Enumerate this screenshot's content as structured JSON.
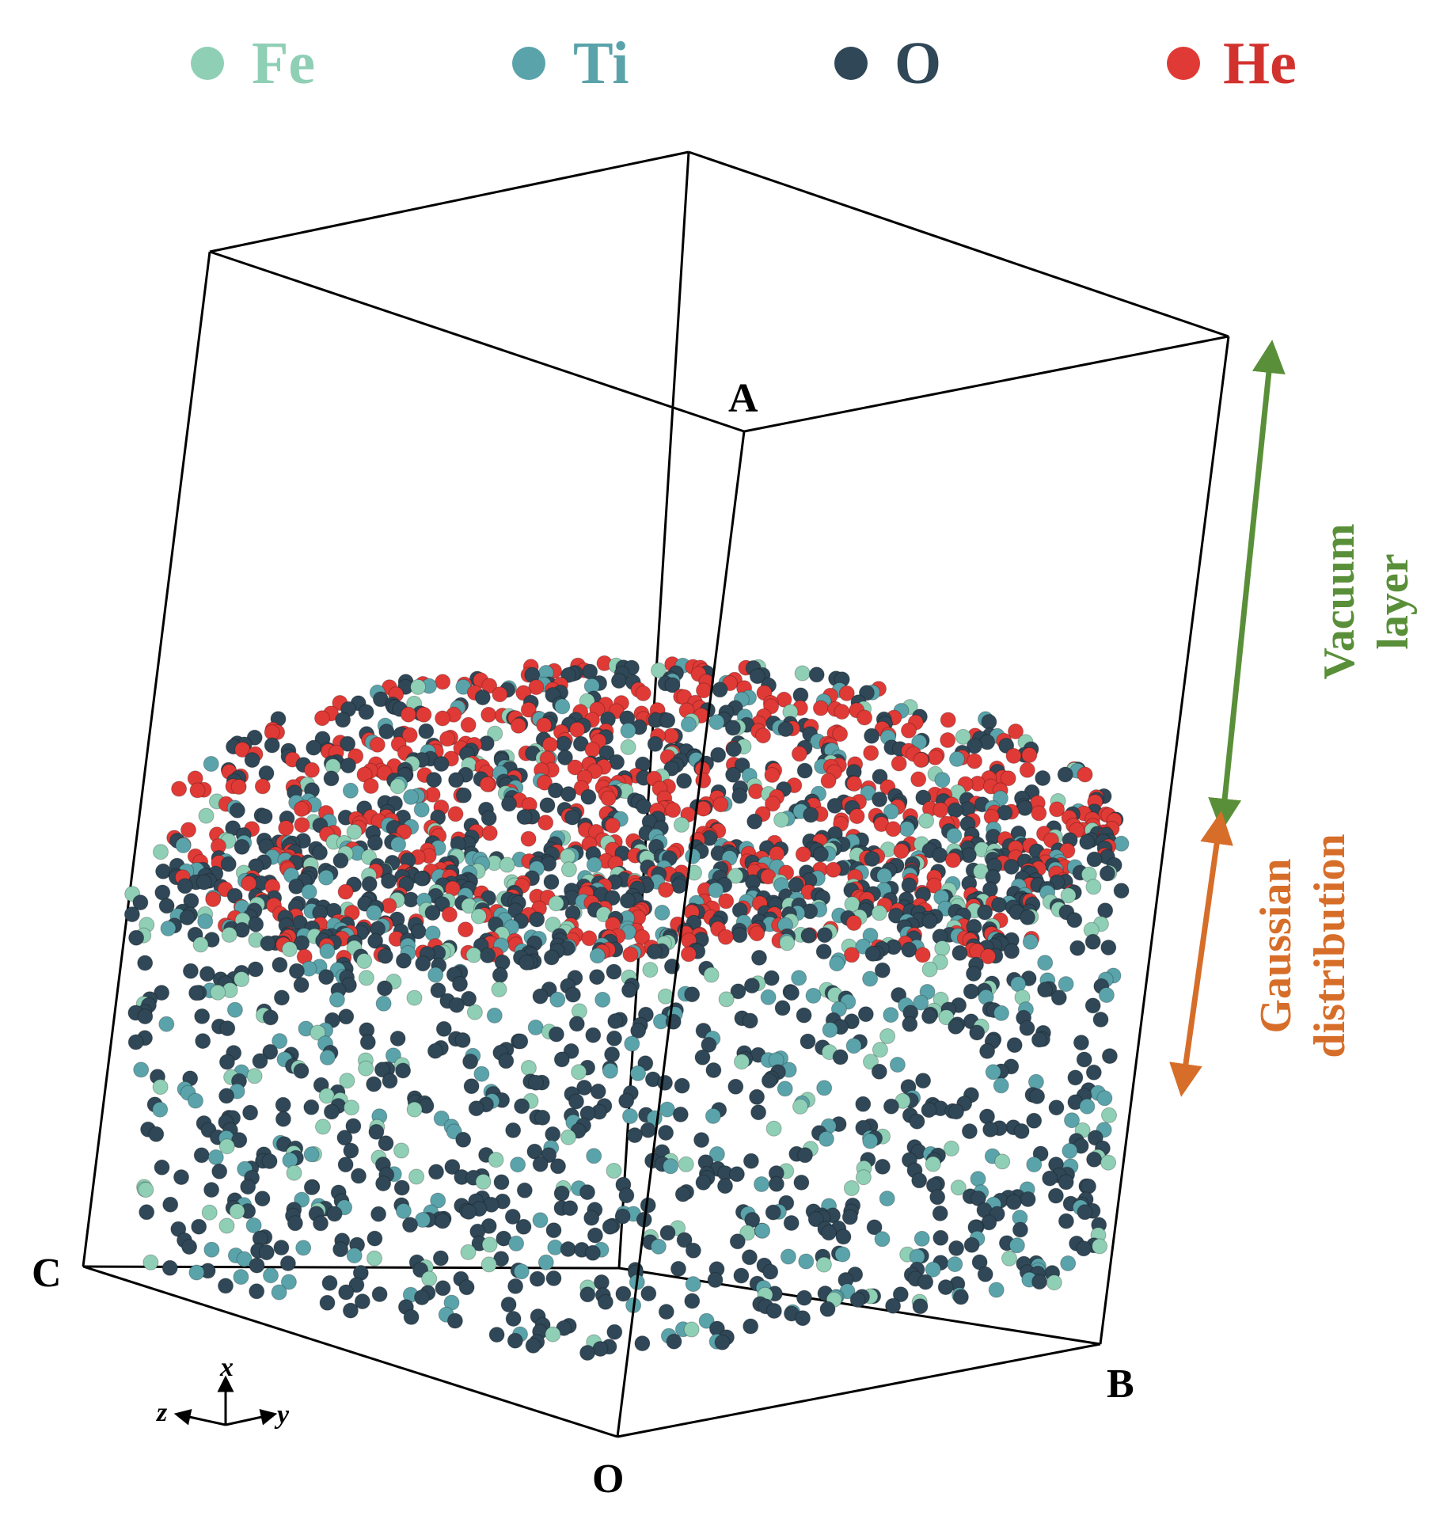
{
  "legend": [
    {
      "label": "Fe",
      "color": "#8fcfb5"
    },
    {
      "label": "Ti",
      "color": "#5aa3aa"
    },
    {
      "label": "O",
      "color": "#2f4756"
    },
    {
      "label": "He",
      "color": "#e03a36"
    }
  ],
  "vertices": {
    "A": "A",
    "B": "B",
    "C": "C",
    "O": "O"
  },
  "annotations": {
    "vacuum_line1": "Vacuum",
    "vacuum_line2": "layer",
    "vacuum_color": "#5a8f3a",
    "gauss_line1": "Gaussian",
    "gauss_line2": "distribution",
    "gauss_color": "#d66e2a"
  },
  "axes": {
    "x": "x",
    "y": "y",
    "z": "z"
  }
}
